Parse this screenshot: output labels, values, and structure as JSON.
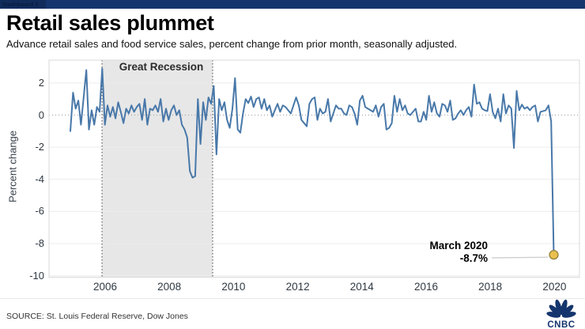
{
  "titlebar": {
    "tab_label": "Dashboard 1"
  },
  "header": {
    "title": "Retail sales plummet",
    "subtitle": "Advance retail sales and food service sales, percent change from prior month, seasonally adjusted."
  },
  "footer": {
    "source": "SOURCE: St. Louis Federal Reserve, Dow Jones",
    "logo_text": "CNBC"
  },
  "colors": {
    "line": "#4878a9",
    "marker_fill": "#e9c050",
    "marker_stroke": "#8e7b33",
    "navy": "#14356d",
    "recession_band": "#e7e7e7"
  },
  "chart_data": {
    "type": "line",
    "title": "Retail sales plummet",
    "subtitle": "Advance retail sales and food service sales, percent change from prior month, seasonally adjusted.",
    "ylabel": "Percent change",
    "xlabel": "",
    "frequency": "monthly",
    "x_start": "2005-01",
    "x_end": "2020-03",
    "ylim": [
      -10.1,
      3.4
    ],
    "grid": true,
    "y_ticks": [
      2,
      0,
      -2,
      -4,
      -6,
      -8,
      -10
    ],
    "x_tick_labels": [
      "2006",
      "2008",
      "2010",
      "2012",
      "2014",
      "2016",
      "2018",
      "2020"
    ],
    "recession_band": {
      "label": "Great Recession",
      "x_start": "2005-12",
      "x_end": "2009-07"
    },
    "annotation": {
      "line1": "March 2020",
      "line2": "-8.7%",
      "value": -8.7
    },
    "series": [
      {
        "name": "Advance retail and food service sales, % change from prior month",
        "values": [
          -1.0,
          1.4,
          0.4,
          0.9,
          -0.6,
          1.1,
          2.8,
          -0.9,
          0.3,
          -0.6,
          0.5,
          0.2,
          2.9,
          -0.6,
          0.6,
          -0.1,
          0.5,
          -0.2,
          0.8,
          0.2,
          -0.5,
          0.4,
          0.1,
          0.6,
          0.2,
          0.5,
          0.7,
          -0.3,
          1.0,
          -0.6,
          0.4,
          0.3,
          0.6,
          0.2,
          1.0,
          -0.4,
          0.4,
          -0.3,
          0.3,
          0.6,
          0.0,
          0.3,
          -0.6,
          -0.9,
          -1.4,
          -3.5,
          -3.9,
          -3.8,
          1.0,
          -1.8,
          0.8,
          -0.3,
          1.1,
          0.7,
          1.8,
          -2.45,
          1.0,
          0.3,
          0.8,
          -0.3,
          -0.8,
          0.4,
          2.3,
          -0.9,
          -1.1,
          0.1,
          1.0,
          0.75,
          1.15,
          0.5,
          1.0,
          1.1,
          0.4,
          1.0,
          0.3,
          0.6,
          -0.1,
          0.3,
          0.7,
          0.2,
          0.6,
          0.5,
          0.3,
          0.1,
          0.6,
          1.1,
          0.6,
          -0.3,
          -0.5,
          -0.7,
          0.7,
          1.0,
          1.1,
          -0.3,
          0.4,
          0.1,
          0.2,
          1.0,
          -0.4,
          0.1,
          0.6,
          0.4,
          0.4,
          0.1,
          0.0,
          0.6,
          0.5,
          0.1,
          -0.6,
          0.9,
          1.2,
          0.5,
          0.4,
          0.3,
          0.2,
          0.6,
          -0.1,
          0.5,
          0.7,
          -0.9,
          -0.8,
          -0.5,
          1.2,
          0.2,
          1.0,
          0.3,
          0.6,
          0.1,
          0.0,
          0.2,
          0.4,
          -0.4,
          -0.4,
          0.2,
          -0.3,
          1.2,
          0.2,
          0.8,
          0.1,
          -0.1,
          0.7,
          0.6,
          0.2,
          0.9,
          -0.3,
          -0.2,
          0.1,
          0.3,
          0.0,
          0.3,
          0.5,
          -0.1,
          1.9,
          0.7,
          0.8,
          0.4,
          0.3,
          0.25,
          1.3,
          0.2,
          -0.2,
          0.4,
          -0.4,
          1.3,
          0.1,
          0.6,
          0.4,
          -2.05,
          1.5,
          0.3,
          0.65,
          0.4,
          0.5,
          0.3,
          0.5,
          0.6,
          -0.4,
          0.2,
          0.25,
          0.3,
          0.6,
          -0.4,
          -8.7
        ]
      }
    ],
    "legend": false
  }
}
